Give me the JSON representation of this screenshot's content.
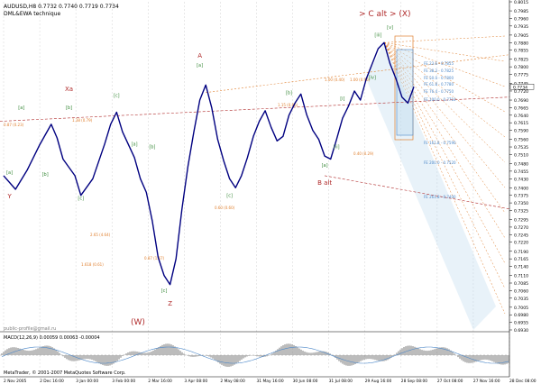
{
  "header": {
    "symbol_line": "AUDUSD,H8  0.7732 0.7740 0.7719 0.7734",
    "technique": "DML&EWA technique"
  },
  "watermark_top": "> C alt > (X)",
  "watermark_bottom": "(W)",
  "credit": "public-profile@gmail.ru",
  "copyright": "MetaTrader, © 2001-2007 MetaQuotes Software Corp.",
  "macd_label": "MACD(12,26,9) 0.00059 0.00063 -0.00004",
  "colors": {
    "bg": "#ffffff",
    "price": "#000080",
    "grid": "#c8c8c8",
    "wave_green": "#3a8a3a",
    "wave_red": "#b02a2a",
    "fib_orange": "#e08030",
    "fib_blue": "#4a86c8",
    "channel_fill": "#bcd9ee",
    "macd_hist": "#a0a0a0",
    "signal": "#4a86c8"
  },
  "chart_data": {
    "type": "line",
    "symbol": "AUDUSD",
    "timeframe": "H8",
    "x": [
      "2 Nov 2005",
      "2 Dec 16:00",
      "3 Jan 00:00",
      "3 Feb 00:00",
      "2 Mar 16:00",
      "3 Apr 08:00",
      "2 May 08:00",
      "31 May 16:00",
      "30 Jun 08:00",
      "31 Jul 08:00",
      "29 Aug 16:00",
      "28 Sep 08:00",
      "27 Oct 08:00",
      "27 Nov 16:00",
      "28 Dec 08:00"
    ],
    "y_ticks": [
      "0.8015",
      "0.7985",
      "0.7960",
      "0.7935",
      "0.7905",
      "0.7880",
      "0.7855",
      "0.7825",
      "0.7800",
      "0.7775",
      "0.7745",
      "0.7720",
      "0.7690",
      "0.7665",
      "0.7640",
      "0.7615",
      "0.7590",
      "0.7560",
      "0.7535",
      "0.7510",
      "0.7480",
      "0.7455",
      "0.7430",
      "0.7400",
      "0.7375",
      "0.7350",
      "0.7325",
      "0.7295",
      "0.7270",
      "0.7245",
      "0.7220",
      "0.7190",
      "0.7165",
      "0.7140",
      "0.7110",
      "0.7085",
      "0.7060",
      "0.7035",
      "0.7005",
      "0.6980",
      "0.6955",
      "0.6930"
    ],
    "ylim": [
      0.693,
      0.8015
    ],
    "last_price": "0.7734",
    "price_path": [
      [
        0,
        0.744
      ],
      [
        2,
        0.7395
      ],
      [
        4,
        0.746
      ],
      [
        6,
        0.754
      ],
      [
        8,
        0.761
      ],
      [
        9,
        0.7565
      ],
      [
        10,
        0.7495
      ],
      [
        12,
        0.744
      ],
      [
        13,
        0.7375
      ],
      [
        15,
        0.743
      ],
      [
        17,
        0.7545
      ],
      [
        18,
        0.761
      ],
      [
        19,
        0.765
      ],
      [
        20,
        0.7585
      ],
      [
        22,
        0.75
      ],
      [
        23,
        0.743
      ],
      [
        24,
        0.7385
      ],
      [
        25,
        0.729
      ],
      [
        26,
        0.717
      ],
      [
        27,
        0.711
      ],
      [
        28,
        0.708
      ],
      [
        29,
        0.7165
      ],
      [
        30,
        0.733
      ],
      [
        31,
        0.747
      ],
      [
        32,
        0.7585
      ],
      [
        33,
        0.769
      ],
      [
        34,
        0.774
      ],
      [
        35,
        0.7665
      ],
      [
        36,
        0.756
      ],
      [
        37,
        0.749
      ],
      [
        38,
        0.743
      ],
      [
        39,
        0.74
      ],
      [
        40,
        0.744
      ],
      [
        41,
        0.75
      ],
      [
        42,
        0.757
      ],
      [
        43,
        0.762
      ],
      [
        44,
        0.7655
      ],
      [
        45,
        0.76
      ],
      [
        46,
        0.7555
      ],
      [
        47,
        0.757
      ],
      [
        48,
        0.764
      ],
      [
        49,
        0.768
      ],
      [
        50,
        0.771
      ],
      [
        51,
        0.764
      ],
      [
        52,
        0.759
      ],
      [
        53,
        0.756
      ],
      [
        54,
        0.7505
      ],
      [
        55,
        0.7495
      ],
      [
        56,
        0.756
      ],
      [
        57,
        0.763
      ],
      [
        58,
        0.767
      ],
      [
        59,
        0.772
      ],
      [
        60,
        0.769
      ],
      [
        61,
        0.776
      ],
      [
        62,
        0.781
      ],
      [
        63,
        0.786
      ],
      [
        64,
        0.788
      ],
      [
        65,
        0.781
      ],
      [
        66,
        0.776
      ],
      [
        67,
        0.77
      ],
      [
        68,
        0.768
      ],
      [
        69,
        0.7734
      ]
    ],
    "wave_labels": [
      {
        "text": "[a]",
        "i": 1,
        "price": 0.7445,
        "color": "green"
      },
      {
        "text": "[b]",
        "i": 7,
        "price": 0.744,
        "color": "green"
      },
      {
        "text": "[c]",
        "i": 13,
        "price": 0.736,
        "color": "green"
      },
      {
        "text": "[a]",
        "i": 3,
        "price": 0.766,
        "color": "green"
      },
      {
        "text": "[b]",
        "i": 11,
        "price": 0.766,
        "color": "green"
      },
      {
        "text": "[c]",
        "i": 19,
        "price": 0.77,
        "color": "green"
      },
      {
        "text": "[a]",
        "i": 22,
        "price": 0.754,
        "color": "green"
      },
      {
        "text": "[b]",
        "i": 25,
        "price": 0.753,
        "color": "green"
      },
      {
        "text": "[c]",
        "i": 27,
        "price": 0.7055,
        "color": "green"
      },
      {
        "text": "[a]",
        "i": 33,
        "price": 0.78,
        "color": "green"
      },
      {
        "text": "[b]",
        "i": 48,
        "price": 0.771,
        "color": "green"
      },
      {
        "text": "[c]",
        "i": 38,
        "price": 0.737,
        "color": "green"
      },
      {
        "text": "[a]",
        "i": 54,
        "price": 0.747,
        "color": "green"
      },
      {
        "text": "[i]",
        "i": 57,
        "price": 0.769,
        "color": "green"
      },
      {
        "text": "[ii]",
        "i": 56,
        "price": 0.753,
        "color": "green"
      },
      {
        "text": "[iii]",
        "i": 63,
        "price": 0.79,
        "color": "green"
      },
      {
        "text": "[iv]",
        "i": 62,
        "price": 0.776,
        "color": "green"
      },
      {
        "text": "[v]",
        "i": 65,
        "price": 0.7925,
        "color": "green"
      }
    ],
    "wave_degree_labels": [
      {
        "text": "Xa",
        "i": 11,
        "price": 0.772,
        "color": "red"
      },
      {
        "text": "Y",
        "i": 1,
        "price": 0.7365,
        "color": "red"
      },
      {
        "text": "Z",
        "i": 28,
        "price": 0.701,
        "color": "red"
      },
      {
        "text": "A",
        "i": 33,
        "price": 0.783,
        "color": "red"
      },
      {
        "text": "B alt",
        "i": 54,
        "price": 0.741,
        "color": "red"
      }
    ],
    "fib_labels": [
      "0.87 (0.23)",
      "1.38 (0.79)",
      "2.65 (4.64)",
      "1.618 (0.61)",
      "0.87 (1.67)",
      "1.15 (0.86)",
      "0.60 (0.60)",
      "0.40 (0.29)",
      "1.00 (0.40)",
      "1.00 (0.96)",
      "FE 23.6 - 0.7855",
      "FE 38.2 - 0.7825",
      "FE 50.0 - 0.7800",
      "FE 61.8 - 0.7780",
      "FE 76.4 - 0.7750",
      "FE 100.0 - 0.7710",
      "FE 161.8 - 0.7590",
      "FE 200.0 - 0.7520",
      "FE 261.8 - 0.7400"
    ],
    "grid": true
  }
}
